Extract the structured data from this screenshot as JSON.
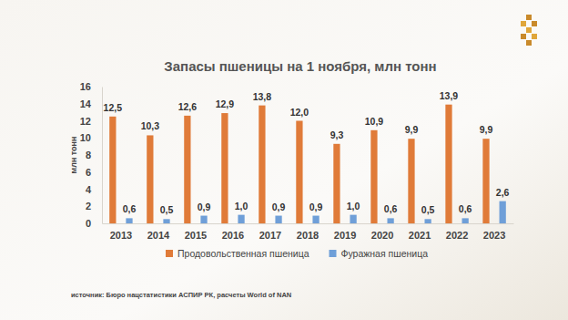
{
  "chart_data": {
    "type": "bar",
    "title": "Запасы пшеницы на 1 ноября, млн тонн",
    "y_label": "млн тонн",
    "source": "источник: Бюро нацстатистики АСПИР РК, расчеты World of NAN",
    "categories": [
      "2013",
      "2014",
      "2015",
      "2016",
      "2017",
      "2018",
      "2019",
      "2020",
      "2021",
      "2022",
      "2023"
    ],
    "series": [
      {
        "name": "Продовольственная пшеница",
        "color": "#e07b39",
        "values": [
          12.5,
          10.3,
          12.6,
          12.9,
          13.8,
          12.0,
          9.3,
          10.9,
          9.9,
          13.9,
          9.9
        ],
        "value_labels": [
          "12,5",
          "10,3",
          "12,6",
          "12,9",
          "13,8",
          "12,0",
          "9,3",
          "10,9",
          "9,9",
          "13,9",
          "9,9"
        ]
      },
      {
        "name": "Фуражная пшеница",
        "color": "#6f9fd8",
        "values": [
          0.6,
          0.5,
          0.9,
          1.0,
          0.9,
          0.9,
          1.0,
          0.6,
          0.5,
          0.6,
          2.6
        ],
        "value_labels": [
          "0,6",
          "0,5",
          "0,9",
          "1,0",
          "0,9",
          "0,9",
          "1,0",
          "0,6",
          "0,5",
          "0,6",
          "2,6"
        ]
      }
    ],
    "ylim": [
      0,
      16
    ],
    "yticks": [
      0,
      2,
      4,
      6,
      8,
      10,
      12,
      14,
      16
    ],
    "grid": false,
    "legend": "bottom",
    "data_labels": true
  }
}
